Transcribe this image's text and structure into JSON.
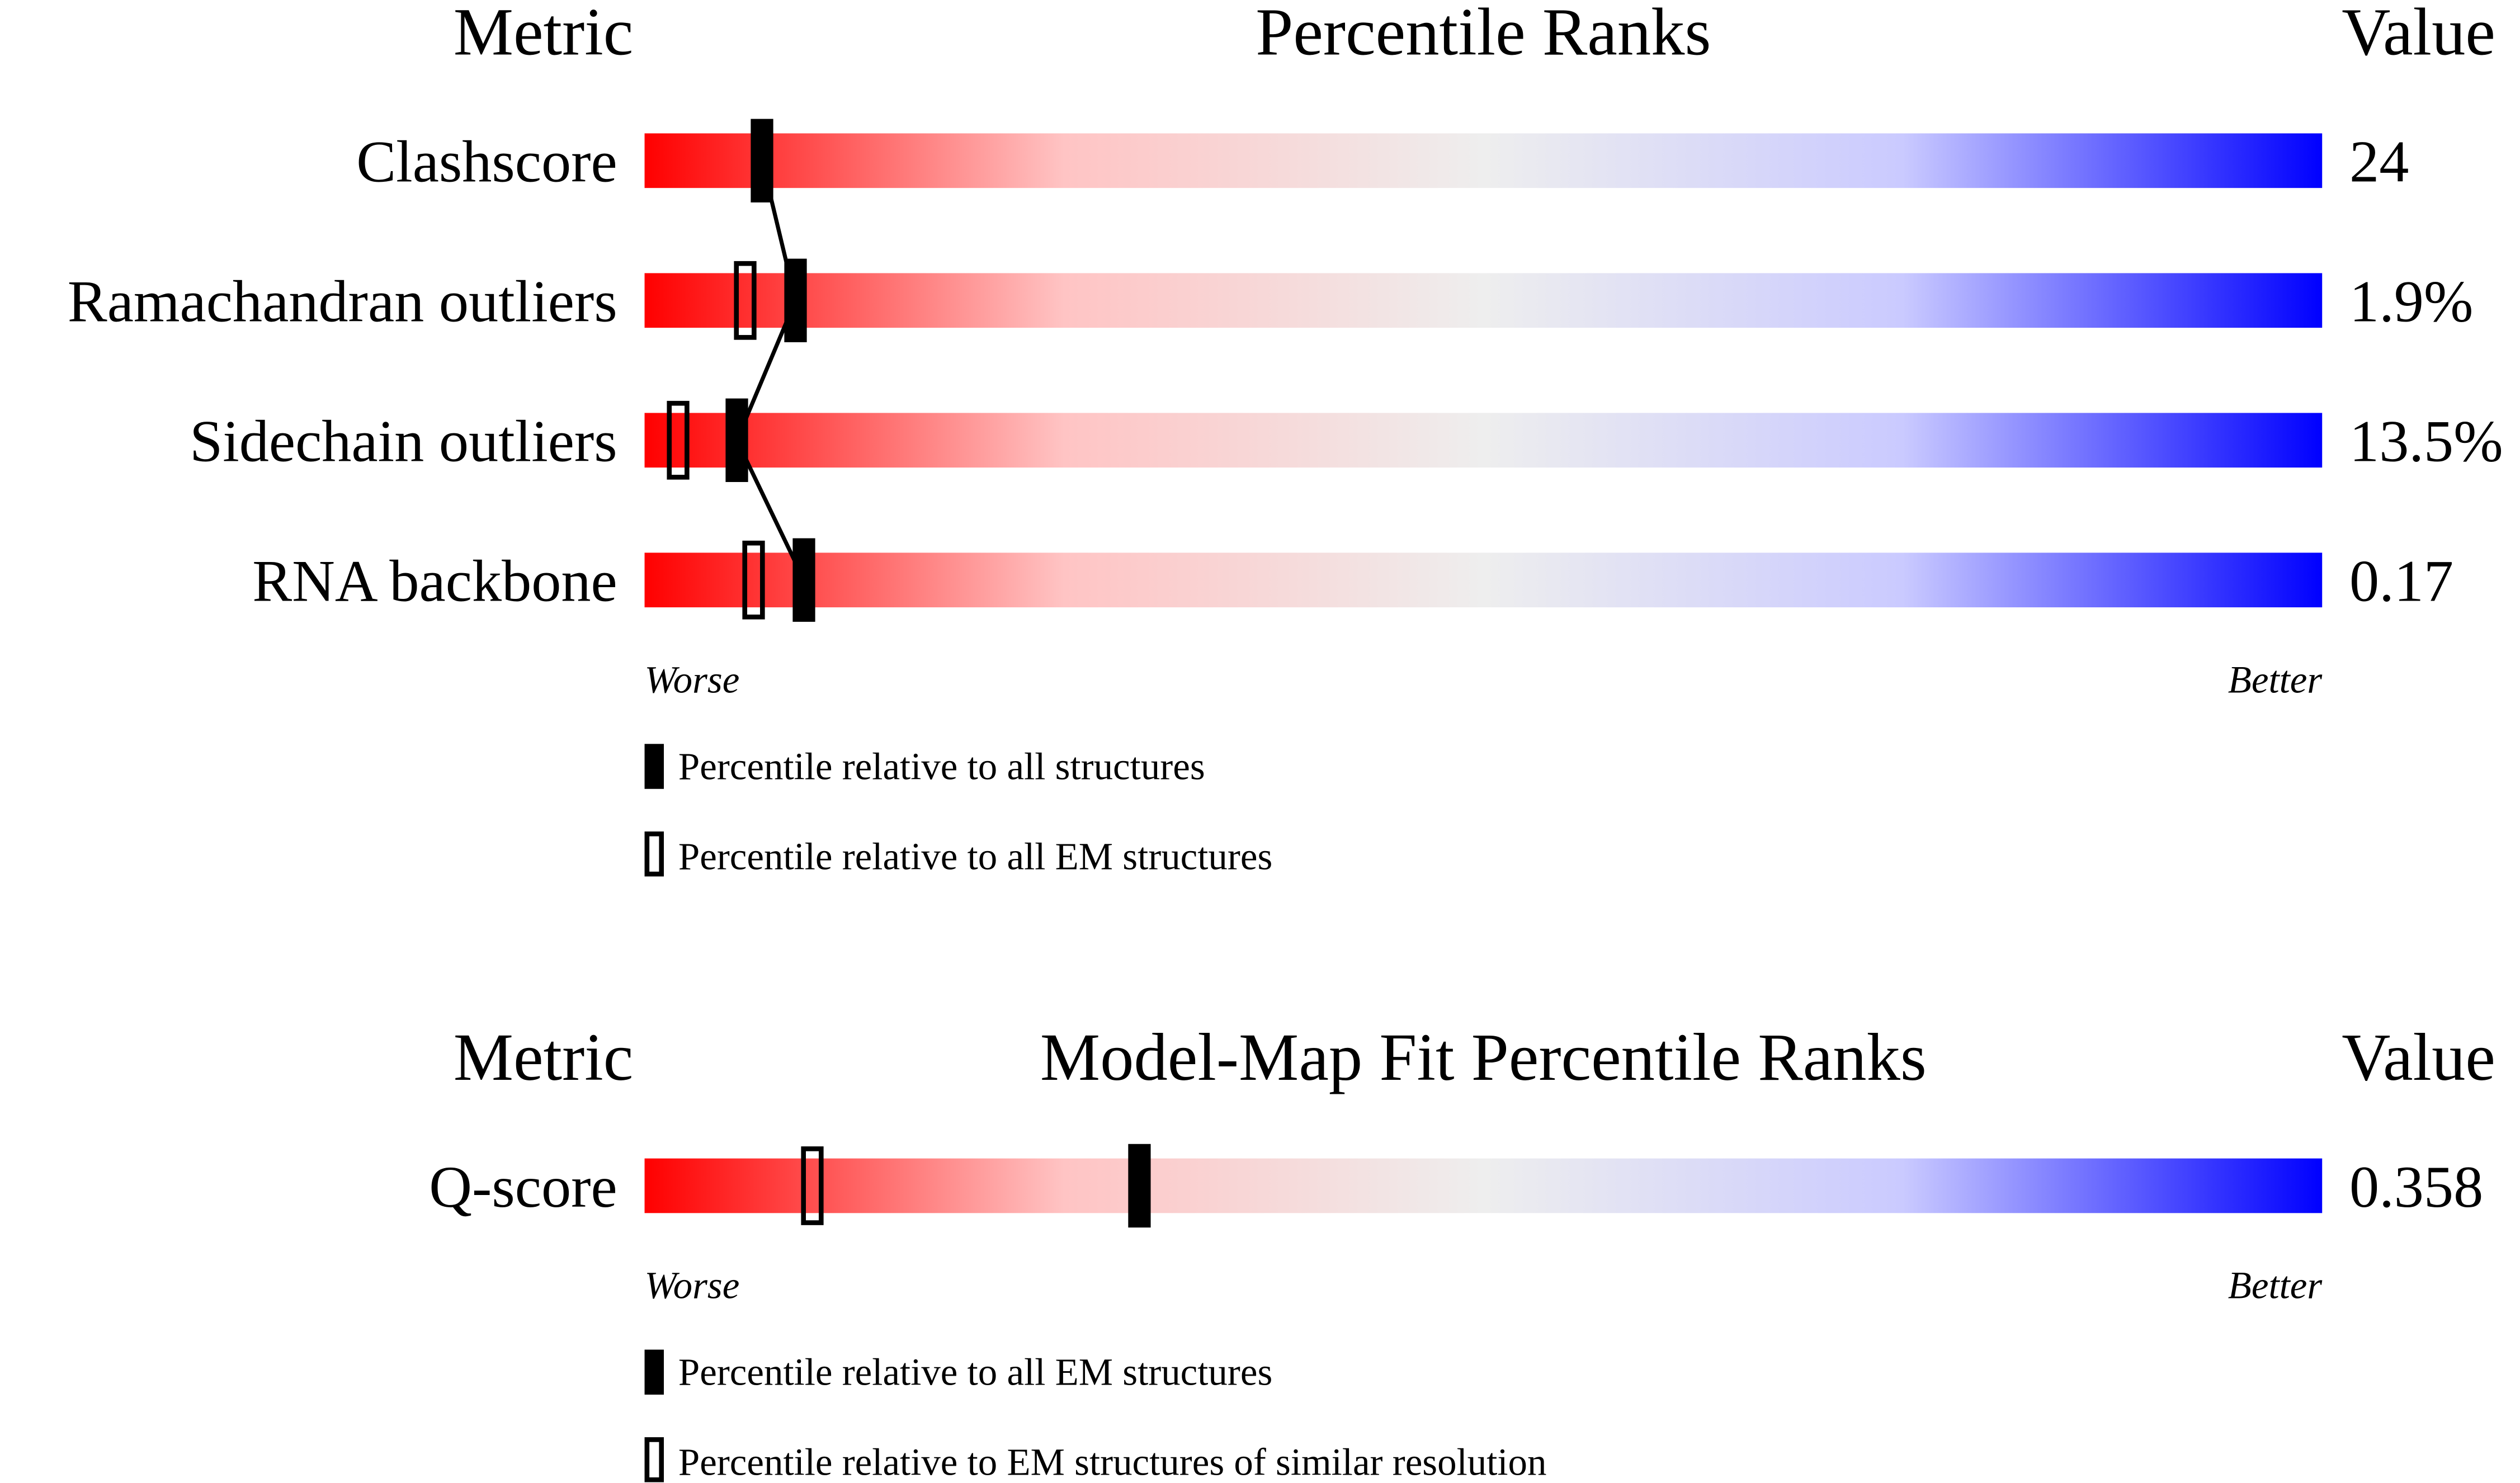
{
  "panels": [
    {
      "headers": {
        "metric": "Metric",
        "ranks": "Percentile Ranks",
        "value": "Value"
      },
      "rows": [
        {
          "metric": "Clashscore",
          "value": "24",
          "percentile_filled": 7,
          "percentile_open": null
        },
        {
          "metric": "Ramachandran outliers",
          "value": "1.9%",
          "percentile_filled": 9,
          "percentile_open": 6
        },
        {
          "metric": "Sidechain outliers",
          "value": "13.5%",
          "percentile_filled": 5.5,
          "percentile_open": 2
        },
        {
          "metric": "RNA backbone",
          "value": "0.17",
          "percentile_filled": 9.5,
          "percentile_open": 6.5
        }
      ],
      "worse": "Worse",
      "better": "Better",
      "legend": {
        "filled": "Percentile relative to all structures",
        "open": "Percentile relative to all EM structures"
      }
    },
    {
      "headers": {
        "metric": "Metric",
        "ranks": "Model-Map Fit Percentile Ranks",
        "value": "Value"
      },
      "rows": [
        {
          "metric": "Q-score",
          "value": "0.358",
          "percentile_filled": 29.5,
          "percentile_open": 10
        }
      ],
      "worse": "Worse",
      "better": "Better",
      "legend": {
        "filled": "Percentile relative to all EM structures",
        "open": "Percentile relative to EM structures of similar resolution"
      }
    }
  ]
}
